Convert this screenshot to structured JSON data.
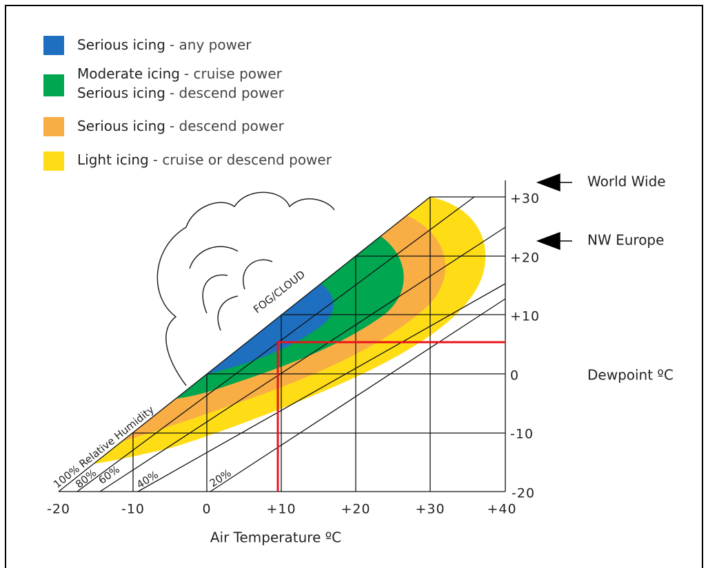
{
  "legend": [
    {
      "color": "#1e6fc0",
      "lines": [
        {
          "term": "Serious icing",
          "desc": "- any power"
        }
      ]
    },
    {
      "color": "#00a650",
      "lines": [
        {
          "term": "Moderate icing",
          "desc": "- cruise power"
        },
        {
          "term": "Serious icing",
          "desc": "- descend power"
        }
      ]
    },
    {
      "color": "#f9ad45",
      "lines": [
        {
          "term": "Serious icing",
          "desc": "- descend power"
        }
      ]
    },
    {
      "color": "#fedd17",
      "lines": [
        {
          "term": "Light icing",
          "desc": "- cruise or descend power"
        }
      ]
    }
  ],
  "x_axis": {
    "title": "Air Temperature ºC",
    "ticks": [
      "-20",
      "-10",
      "0",
      "+10",
      "+20",
      "+30",
      "+40"
    ]
  },
  "y_axis": {
    "ticks": [
      "-20",
      "-10",
      "0",
      "+10",
      "+20",
      "+30"
    ]
  },
  "side_labels": [
    "World Wide",
    "NW Europe",
    "Dewpoint ºC"
  ],
  "humidity_labels": [
    "100% Relative Humidity",
    "80%",
    "60%",
    "40%",
    "20%"
  ],
  "cloud_label": "FOG/CLOUD"
}
